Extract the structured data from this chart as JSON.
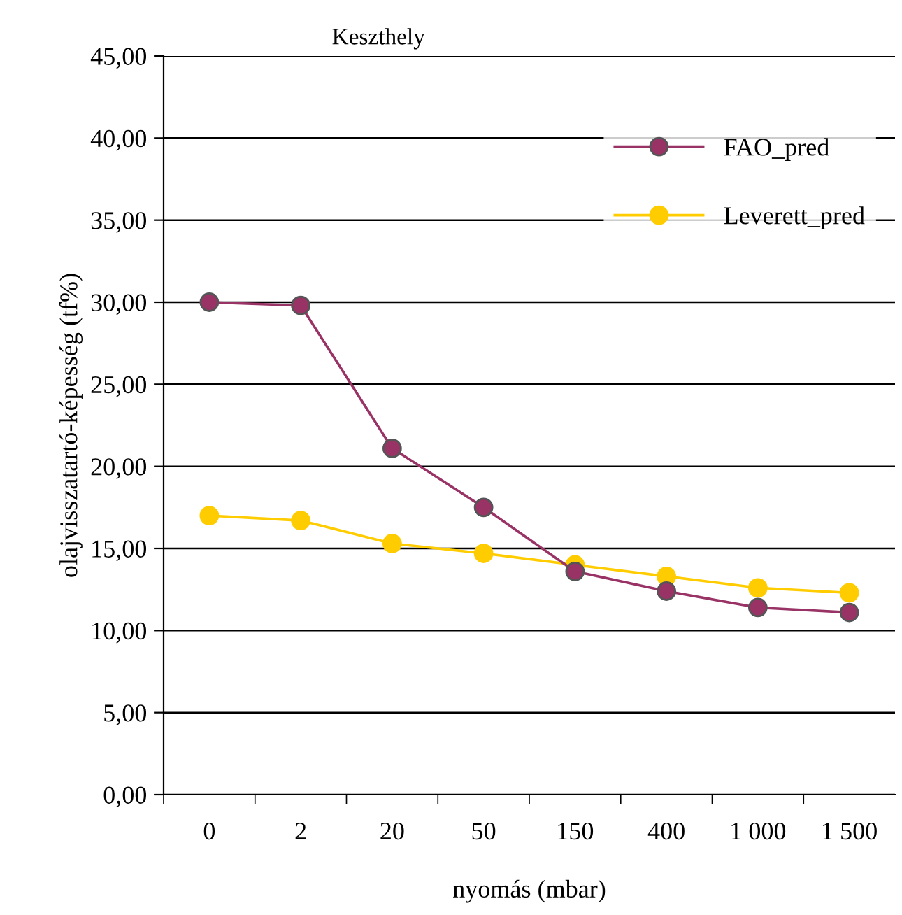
{
  "chart_data": {
    "type": "line",
    "title": "Keszthely",
    "xlabel": "nyomás (mbar)",
    "ylabel": "olajvisszatartó-képesség (tf%)",
    "categories": [
      "0",
      "2",
      "20",
      "50",
      "150",
      "400",
      "1 000",
      "1 500"
    ],
    "series": [
      {
        "name": "FAO_pred",
        "color": "#993366",
        "values": [
          30.0,
          29.8,
          21.1,
          17.5,
          13.6,
          12.4,
          11.4,
          11.1
        ]
      },
      {
        "name": "Leverett_pred",
        "color": "#ffcc00",
        "values": [
          17.0,
          16.7,
          15.3,
          14.7,
          14.0,
          13.3,
          12.6,
          12.3
        ]
      }
    ],
    "ylim": [
      0,
      45
    ],
    "yticks": [
      {
        "value": 0,
        "label": "0,00"
      },
      {
        "value": 5,
        "label": "5,00"
      },
      {
        "value": 10,
        "label": "10,00"
      },
      {
        "value": 15,
        "label": "15,00"
      },
      {
        "value": 20,
        "label": "20,00"
      },
      {
        "value": 25,
        "label": "25,00"
      },
      {
        "value": 30,
        "label": "30,00"
      },
      {
        "value": 35,
        "label": "35,00"
      },
      {
        "value": 40,
        "label": "40,00"
      },
      {
        "value": 45,
        "label": "45,00"
      }
    ],
    "grid": "y",
    "legend": "top right",
    "marker": "circle",
    "line_style": "solid"
  }
}
